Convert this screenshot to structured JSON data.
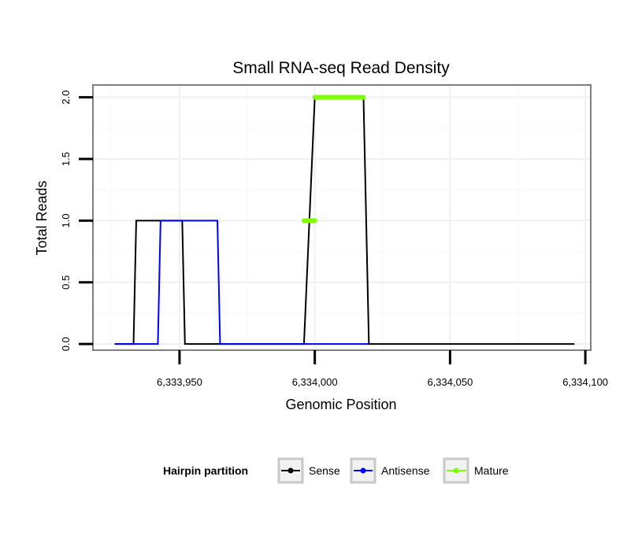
{
  "chart_data": {
    "type": "line",
    "title": "Small RNA-seq Read Density",
    "xlabel": "Genomic Position",
    "ylabel": "Total Reads",
    "xlim": [
      6333918,
      6334102
    ],
    "ylim": [
      -0.05,
      2.1
    ],
    "x_ticks": [
      6333950,
      6334000,
      6334050,
      6334100
    ],
    "x_tick_labels": [
      "6,333,950",
      "6,334,000",
      "6,334,050",
      "6,334,100"
    ],
    "y_ticks": [
      0,
      0.5,
      1,
      1.5,
      2
    ],
    "y_tick_labels": [
      "0.0",
      "0.5",
      "1.0",
      "1.5",
      "2.0"
    ],
    "grid": true,
    "legend": {
      "title": "Hairpin partition",
      "position": "bottom",
      "entries": [
        {
          "label": "Sense",
          "color": "#000000"
        },
        {
          "label": "Antisense",
          "color": "#0000ff"
        },
        {
          "label": "Mature",
          "color": "#7fff00"
        }
      ]
    },
    "series": [
      {
        "name": "Sense",
        "color": "#000000",
        "style": "line",
        "x": [
          6333926,
          6333933,
          6333934,
          6333951,
          6333952,
          6333978,
          6333986,
          6333996,
          6334000,
          6334018,
          6334020,
          6334096
        ],
        "y": [
          0,
          0,
          1,
          1,
          0,
          0,
          0,
          0,
          2,
          2,
          0,
          0
        ]
      },
      {
        "name": "Antisense",
        "color": "#0000ff",
        "style": "line",
        "x": [
          6333926,
          6333942,
          6333943,
          6333964,
          6333965,
          6334000,
          6334020
        ],
        "y": [
          0,
          0,
          1,
          1,
          0,
          0,
          0
        ]
      },
      {
        "name": "Mature",
        "color": "#7fff00",
        "style": "segments",
        "segments": [
          {
            "x": [
              6333996,
              6334000
            ],
            "y": [
              1,
              1
            ]
          },
          {
            "x": [
              6334000,
              6334018
            ],
            "y": [
              2,
              2
            ]
          }
        ]
      }
    ]
  }
}
